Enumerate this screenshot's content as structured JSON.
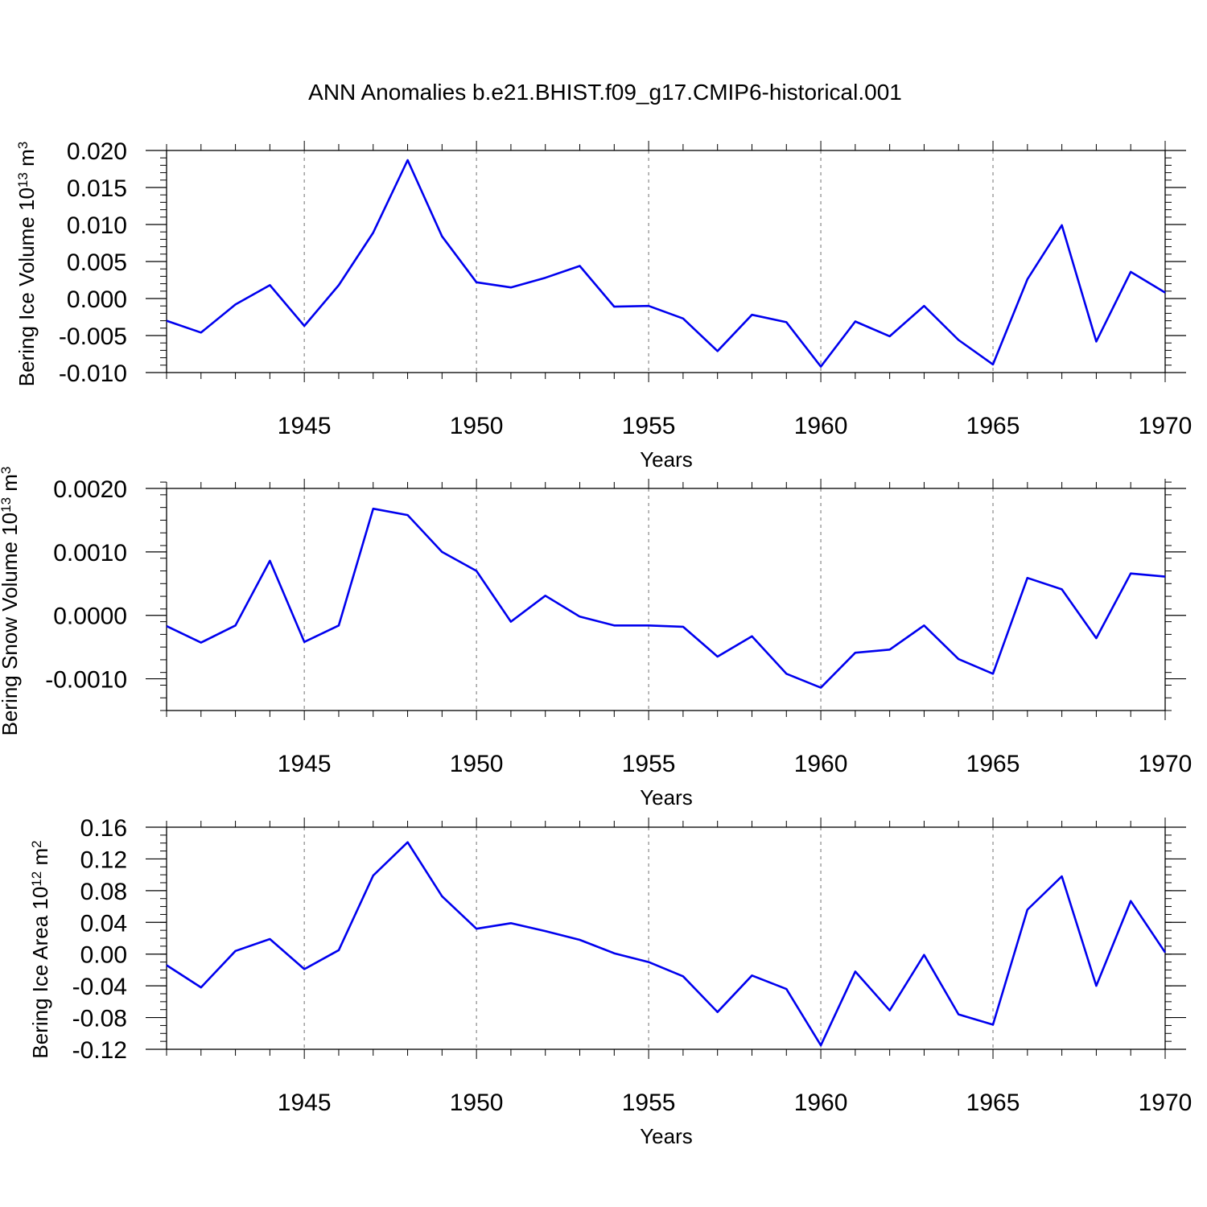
{
  "title": "ANN Anomalies b.e21.BHIST.f09_g17.CMIP6-historical.001",
  "chart_data": [
    {
      "type": "line",
      "ylabel": {
        "base": "Bering Ice Volume 10",
        "exp": "13",
        "unit": " m",
        "unit_exp": "3"
      },
      "xlabel": "Years",
      "xlim": [
        1941,
        1970
      ],
      "ylim": [
        -0.01,
        0.02
      ],
      "major_x": [
        1945,
        1950,
        1955,
        1960,
        1965,
        1970
      ],
      "yticks": [
        {
          "v": 0.02,
          "label": "0.020"
        },
        {
          "v": 0.015,
          "label": "0.015"
        },
        {
          "v": 0.01,
          "label": "0.010"
        },
        {
          "v": 0.005,
          "label": "0.005"
        },
        {
          "v": 0.0,
          "label": "0.000"
        },
        {
          "v": -0.005,
          "label": "-0.005"
        },
        {
          "v": -0.01,
          "label": "-0.010"
        }
      ],
      "minor_y_step": 0.001,
      "grid_x": "dashed at major years",
      "series": [
        {
          "name": "Bering Ice Volume",
          "color": "#0000ee",
          "x": [
            1941,
            1942,
            1943,
            1944,
            1945,
            1946,
            1947,
            1948,
            1949,
            1950,
            1951,
            1952,
            1953,
            1954,
            1955,
            1956,
            1957,
            1958,
            1959,
            1960,
            1961,
            1962,
            1963,
            1964,
            1965,
            1966,
            1967,
            1968,
            1969,
            1970
          ],
          "values": [
            -0.003,
            -0.0046,
            -0.0008,
            0.0018,
            -0.0037,
            0.0018,
            0.0089,
            0.0187,
            0.0084,
            0.0022,
            0.0015,
            0.0028,
            0.0044,
            -0.0011,
            -0.001,
            -0.0027,
            -0.0071,
            -0.0022,
            -0.0032,
            -0.0092,
            -0.0031,
            -0.0051,
            -0.001,
            -0.0056,
            -0.0089,
            0.0026,
            0.0099,
            -0.0058,
            0.0036,
            0.0008
          ]
        }
      ]
    },
    {
      "type": "line",
      "ylabel": {
        "base": "Bering Snow Volume 10",
        "exp": "13",
        "unit": " m",
        "unit_exp": "3"
      },
      "xlabel": "Years",
      "xlim": [
        1941,
        1970
      ],
      "ylim": [
        -0.0015,
        0.002
      ],
      "major_x": [
        1945,
        1950,
        1955,
        1960,
        1965,
        1970
      ],
      "yticks": [
        {
          "v": 0.002,
          "label": "0.0020"
        },
        {
          "v": 0.001,
          "label": "0.0010"
        },
        {
          "v": 0.0,
          "label": "0.0000"
        },
        {
          "v": -0.001,
          "label": "-0.0010"
        }
      ],
      "minor_y_step": 0.0002,
      "grid_x": "dashed at major years",
      "series": [
        {
          "name": "Bering Snow Volume",
          "color": "#0000ee",
          "x": [
            1941,
            1942,
            1943,
            1944,
            1945,
            1946,
            1947,
            1948,
            1949,
            1950,
            1951,
            1952,
            1953,
            1954,
            1955,
            1956,
            1957,
            1958,
            1959,
            1960,
            1961,
            1962,
            1963,
            1964,
            1965,
            1966,
            1967,
            1968,
            1969,
            1970
          ],
          "values": [
            -0.00017,
            -0.00043,
            -0.00016,
            0.00086,
            -0.00042,
            -0.00016,
            0.00168,
            0.00158,
            0.001,
            0.0007,
            -0.0001,
            0.00031,
            -2e-05,
            -0.00016,
            -0.00016,
            -0.00018,
            -0.00065,
            -0.00033,
            -0.00092,
            -0.00114,
            -0.00059,
            -0.00054,
            -0.00016,
            -0.00069,
            -0.00092,
            0.00059,
            0.00041,
            -0.00036,
            0.00066,
            0.00061
          ]
        }
      ]
    },
    {
      "type": "line",
      "ylabel": {
        "base": "Bering Ice Area 10",
        "exp": "12",
        "unit": " m",
        "unit_exp": "2"
      },
      "xlabel": "Years",
      "xlim": [
        1941,
        1970
      ],
      "ylim": [
        -0.12,
        0.16
      ],
      "major_x": [
        1945,
        1950,
        1955,
        1960,
        1965,
        1970
      ],
      "yticks": [
        {
          "v": 0.16,
          "label": "0.16"
        },
        {
          "v": 0.12,
          "label": "0.12"
        },
        {
          "v": 0.08,
          "label": "0.08"
        },
        {
          "v": 0.04,
          "label": "0.04"
        },
        {
          "v": 0.0,
          "label": "0.00"
        },
        {
          "v": -0.04,
          "label": "-0.04"
        },
        {
          "v": -0.08,
          "label": "-0.08"
        },
        {
          "v": -0.12,
          "label": "-0.12"
        }
      ],
      "minor_y_step": 0.01,
      "grid_x": "dashed at major years",
      "series": [
        {
          "name": "Bering Ice Area",
          "color": "#0000ee",
          "x": [
            1941,
            1942,
            1943,
            1944,
            1945,
            1946,
            1947,
            1948,
            1949,
            1950,
            1951,
            1952,
            1953,
            1954,
            1955,
            1956,
            1957,
            1958,
            1959,
            1960,
            1961,
            1962,
            1963,
            1964,
            1965,
            1966,
            1967,
            1968,
            1969,
            1970
          ],
          "values": [
            -0.014,
            -0.042,
            0.004,
            0.019,
            -0.019,
            0.005,
            0.099,
            0.141,
            0.073,
            0.032,
            0.039,
            0.029,
            0.018,
            0.001,
            -0.01,
            -0.028,
            -0.073,
            -0.027,
            -0.044,
            -0.115,
            -0.022,
            -0.071,
            -0.001,
            -0.076,
            -0.089,
            0.056,
            0.098,
            -0.04,
            0.067,
            0.002
          ]
        }
      ]
    }
  ]
}
